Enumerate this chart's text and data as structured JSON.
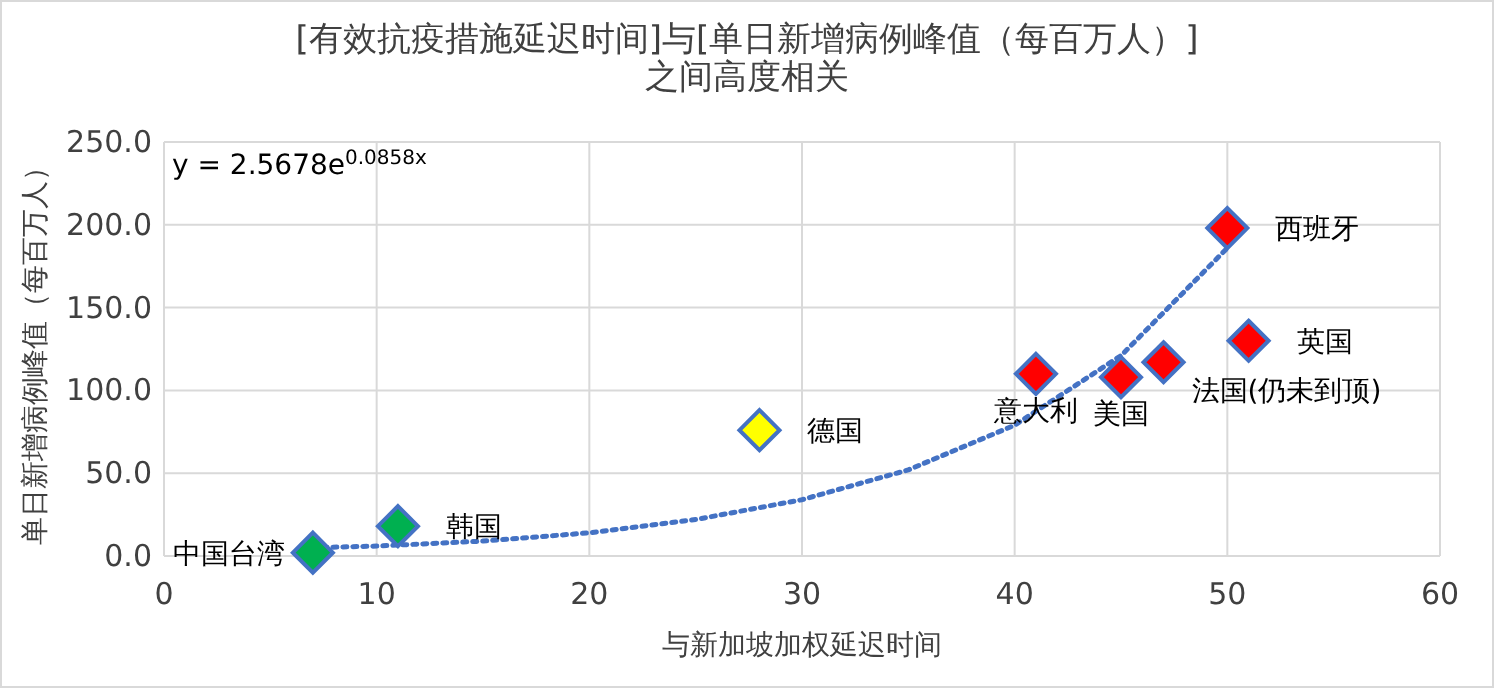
{
  "chart_data": {
    "type": "scatter",
    "title": "[有效抗疫措施延迟时间]与[单日新增病例峰值（每百万人）]\n之间高度相关",
    "xlabel": "与新加坡加权延迟时间",
    "ylabel": "单日新增病例峰值（每百万人）",
    "xlim": [
      0,
      60
    ],
    "xticks": [
      0,
      10,
      20,
      30,
      40,
      50,
      60
    ],
    "ylim": [
      0,
      250
    ],
    "yticks": [
      {
        "value": 0,
        "label": "0.0"
      },
      {
        "value": 50,
        "label": "50.0"
      },
      {
        "value": 100,
        "label": "100.0"
      },
      {
        "value": 150,
        "label": "150.0"
      },
      {
        "value": 200,
        "label": "200.0"
      },
      {
        "value": 250,
        "label": "250.0"
      }
    ],
    "grid": true,
    "marker": "diamond",
    "annotations": [
      "y = 2.5678e$^{0.0858x}$"
    ],
    "series": [
      {
        "name": "中国台湾",
        "color": "#00b050",
        "x": [
          7
        ],
        "values": [
          2
        ]
      },
      {
        "name": "韩国",
        "color": "#00b050",
        "x": [
          11
        ],
        "values": [
          18
        ]
      },
      {
        "name": "德国",
        "color": "#ffff00",
        "x": [
          28
        ],
        "values": [
          76
        ]
      },
      {
        "name": "意大利",
        "color": "#ff0000",
        "x": [
          41
        ],
        "values": [
          110
        ]
      },
      {
        "name": "美国",
        "color": "#ff0000",
        "x": [
          45
        ],
        "values": [
          108
        ]
      },
      {
        "name": "法国(仍未到顶)",
        "color": "#ff0000",
        "x": [
          47
        ],
        "values": [
          117
        ]
      },
      {
        "name": "英国",
        "color": "#ff0000",
        "x": [
          51
        ],
        "values": [
          130
        ]
      },
      {
        "name": "西班牙",
        "color": "#ff0000",
        "x": [
          50
        ],
        "values": [
          198
        ]
      },
      {
        "type": "line",
        "color": "#4472c4",
        "line_style": "dotted",
        "marker": "none",
        "x": [
          7,
          10,
          15,
          20,
          25,
          30,
          35,
          40,
          45,
          50
        ],
        "values": [
          5,
          6,
          9,
          14,
          22,
          34,
          52,
          79,
          121,
          186
        ]
      }
    ]
  }
}
